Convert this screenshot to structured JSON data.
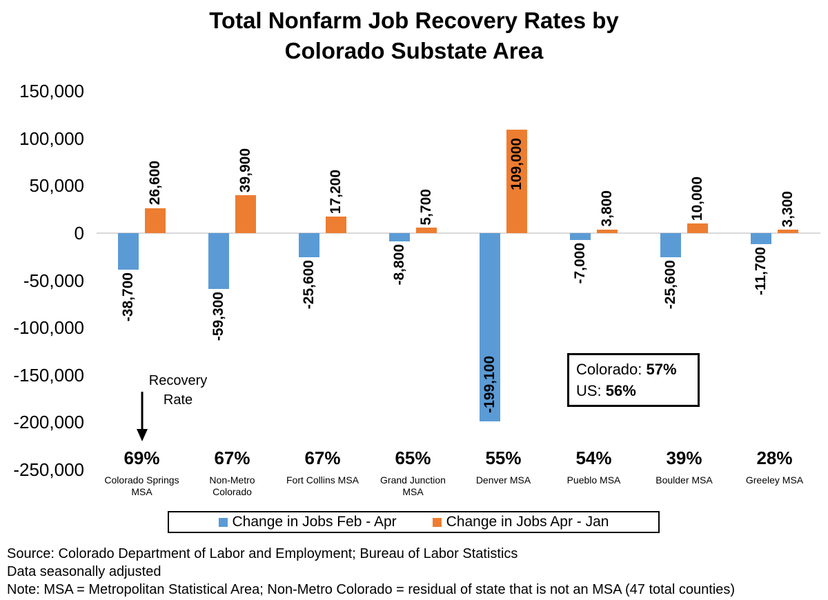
{
  "title": {
    "line1": "Total Nonfarm Job Recovery Rates by",
    "line2": "Colorado Substate Area"
  },
  "chart_data": {
    "type": "bar",
    "categories": [
      "Colorado Springs MSA",
      "Non-Metro Colorado",
      "Fort Collins MSA",
      "Grand Junction MSA",
      "Denver MSA",
      "Pueblo MSA",
      "Boulder MSA",
      "Greeley MSA"
    ],
    "series": [
      {
        "name": "Change in Jobs Feb - Apr",
        "color": "#5B9BD5",
        "values": [
          -38700,
          -59300,
          -25600,
          -8800,
          -199100,
          -7000,
          -25600,
          -11700
        ],
        "labels": [
          "-38,700",
          "-59,300",
          "-25,600",
          "-8,800",
          "-199,100",
          "-7,000",
          "-25,600",
          "-11,700"
        ]
      },
      {
        "name": "Change in Jobs Apr - Jan",
        "color": "#ED7D31",
        "values": [
          26600,
          39900,
          17200,
          5700,
          109000,
          3800,
          10000,
          3300
        ],
        "labels": [
          "26,600",
          "39,900",
          "17,200",
          "5,700",
          "109,000",
          "3,800",
          "10,000",
          "3,300"
        ]
      }
    ],
    "recovery_rates": [
      "69%",
      "67%",
      "67%",
      "65%",
      "55%",
      "54%",
      "39%",
      "28%"
    ],
    "y_ticks": [
      {
        "value": 150000,
        "label": "150,000"
      },
      {
        "value": 100000,
        "label": "100,000"
      },
      {
        "value": 50000,
        "label": "50,000"
      },
      {
        "value": 0,
        "label": "0"
      },
      {
        "value": -50000,
        "label": "-50,000"
      },
      {
        "value": -100000,
        "label": "-100,000"
      },
      {
        "value": -150000,
        "label": "-150,000"
      },
      {
        "value": -200000,
        "label": "-200,000"
      },
      {
        "value": -250000,
        "label": "-250,000"
      }
    ],
    "ylim": [
      -250000,
      150000
    ],
    "grid": "zero-line-only",
    "legend_position": "bottom"
  },
  "annotations": {
    "recovery_rate": {
      "line1": "Recovery",
      "line2": "Rate"
    },
    "summary_box": {
      "colorado_label": "Colorado: ",
      "colorado_value": "57%",
      "us_label": "US: ",
      "us_value": "56%"
    }
  },
  "footer": {
    "lines": [
      "Source: Colorado Department of Labor and Employment; Bureau of Labor Statistics",
      "Data seasonally adjusted",
      "Note: MSA = Metropolitan Statistical Area; Non-Metro Colorado = residual of state that is not an MSA (47 total counties)"
    ]
  },
  "colors": {
    "series1": "#5B9BD5",
    "series2": "#ED7D31",
    "zero_line": "#D9D9D9",
    "text": "#000000",
    "background": "#FFFFFF"
  }
}
